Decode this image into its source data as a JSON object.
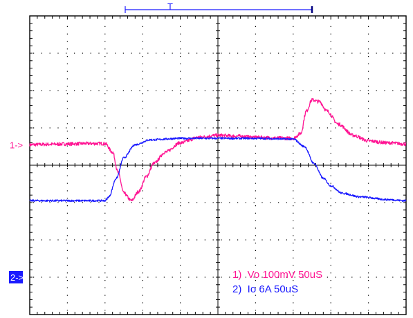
{
  "chart_data": {
    "type": "line",
    "title": "",
    "xlabel": "",
    "ylabel": "",
    "grid": true,
    "x_divisions": 10,
    "y_divisions": 8,
    "xlim": [
      0,
      10
    ],
    "ylim": [
      -4,
      4
    ],
    "x_unit_note": "50uS per division",
    "trigger_label": "T",
    "channel_markers": [
      {
        "label": "1->",
        "color": "#ff1493",
        "level": 0.55
      },
      {
        "label": "2->",
        "color": "#1a1aff",
        "level": -3.0
      }
    ],
    "legend": [
      {
        "text": "1)  Vo 100mV 50uS",
        "color": "#ff1493"
      },
      {
        "text": "2)  Io 6A 50uS",
        "color": "#1a1aff"
      }
    ],
    "series": [
      {
        "name": "1)  Vo 100mV 50uS",
        "color": "#ff1493",
        "x": [
          0.0,
          0.5,
          1.0,
          1.5,
          2.0,
          2.2,
          2.35,
          2.5,
          2.7,
          2.9,
          3.1,
          3.3,
          3.6,
          4.0,
          4.5,
          5.0,
          5.5,
          6.0,
          6.5,
          7.0,
          7.2,
          7.35,
          7.5,
          7.7,
          7.9,
          8.2,
          8.6,
          9.0,
          9.5,
          10.0
        ],
        "values": [
          0.55,
          0.56,
          0.57,
          0.58,
          0.58,
          0.35,
          -0.2,
          -0.75,
          -0.95,
          -0.7,
          -0.3,
          0.05,
          0.35,
          0.6,
          0.75,
          0.8,
          0.78,
          0.75,
          0.73,
          0.72,
          0.85,
          1.45,
          1.75,
          1.7,
          1.45,
          1.1,
          0.8,
          0.65,
          0.6,
          0.57
        ]
      },
      {
        "name": "2)  Io 6A 50uS",
        "color": "#1a1aff",
        "x": [
          0.0,
          1.0,
          2.0,
          2.1,
          2.3,
          2.5,
          2.8,
          3.2,
          4.0,
          5.0,
          6.0,
          7.0,
          7.3,
          7.55,
          7.8,
          8.0,
          8.3,
          8.8,
          9.5,
          10.0
        ],
        "values": [
          -0.95,
          -0.95,
          -0.95,
          -0.85,
          -0.35,
          0.2,
          0.55,
          0.68,
          0.72,
          0.72,
          0.72,
          0.7,
          0.5,
          0.05,
          -0.35,
          -0.55,
          -0.75,
          -0.85,
          -0.92,
          -0.95
        ]
      }
    ]
  }
}
